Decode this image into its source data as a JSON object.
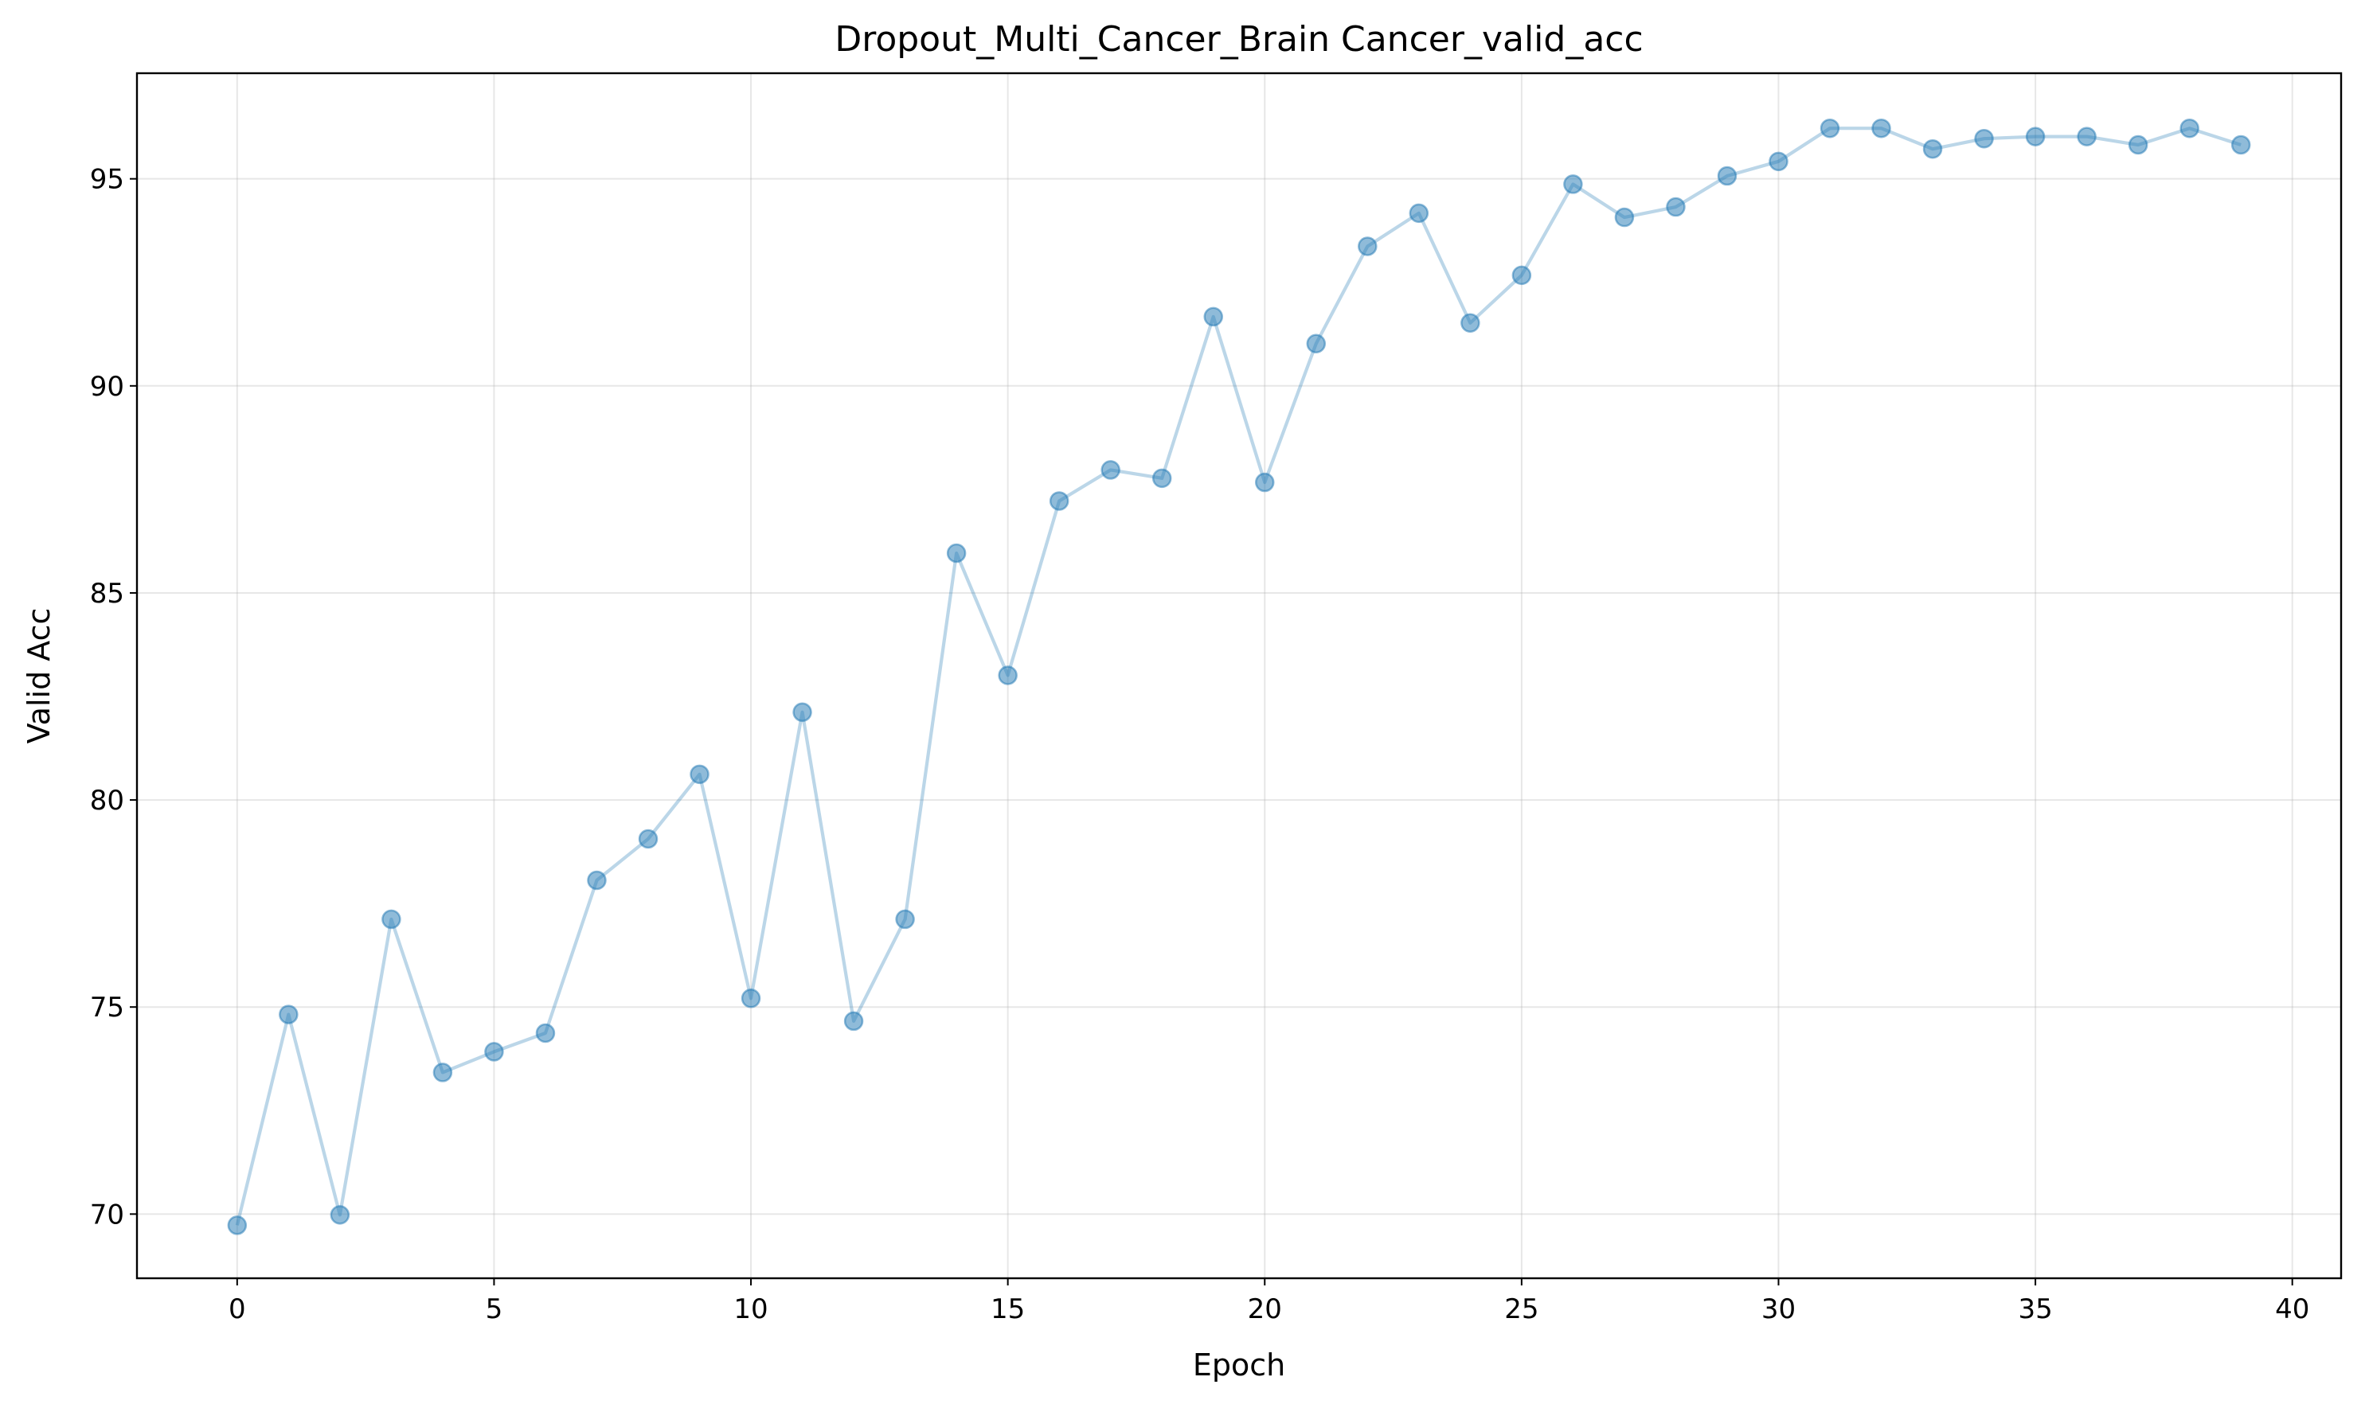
{
  "chart_data": {
    "type": "line",
    "title": "Dropout_Multi_Cancer_Brain Cancer_valid_acc",
    "xlabel": "Epoch",
    "ylabel": "Valid Acc",
    "xlim": [
      -1.95,
      40.95
    ],
    "ylim": [
      68.45,
      97.55
    ],
    "xticks": [
      0,
      5,
      10,
      15,
      20,
      25,
      30,
      35,
      40
    ],
    "yticks": [
      70,
      75,
      80,
      85,
      90,
      95
    ],
    "grid": true,
    "series": [
      {
        "name": "valid_acc",
        "color": "#1f77b4",
        "x": [
          0,
          1,
          2,
          3,
          4,
          5,
          6,
          7,
          8,
          9,
          10,
          11,
          12,
          13,
          14,
          15,
          16,
          17,
          18,
          19,
          20,
          21,
          22,
          23,
          24,
          25,
          26,
          27,
          28,
          29,
          30,
          31,
          32,
          33,
          34,
          35,
          36,
          37,
          38,
          39
        ],
        "values": [
          69.73,
          74.82,
          69.98,
          77.12,
          73.42,
          73.92,
          74.37,
          78.06,
          79.06,
          80.62,
          75.21,
          82.12,
          74.66,
          77.12,
          85.96,
          83.01,
          87.22,
          87.97,
          87.77,
          91.67,
          87.67,
          91.02,
          93.37,
          94.17,
          91.52,
          92.67,
          94.87,
          94.07,
          94.32,
          95.07,
          95.42,
          96.22,
          96.22,
          95.72,
          95.97,
          96.02,
          96.02,
          95.82,
          96.22,
          95.82
        ]
      }
    ]
  }
}
